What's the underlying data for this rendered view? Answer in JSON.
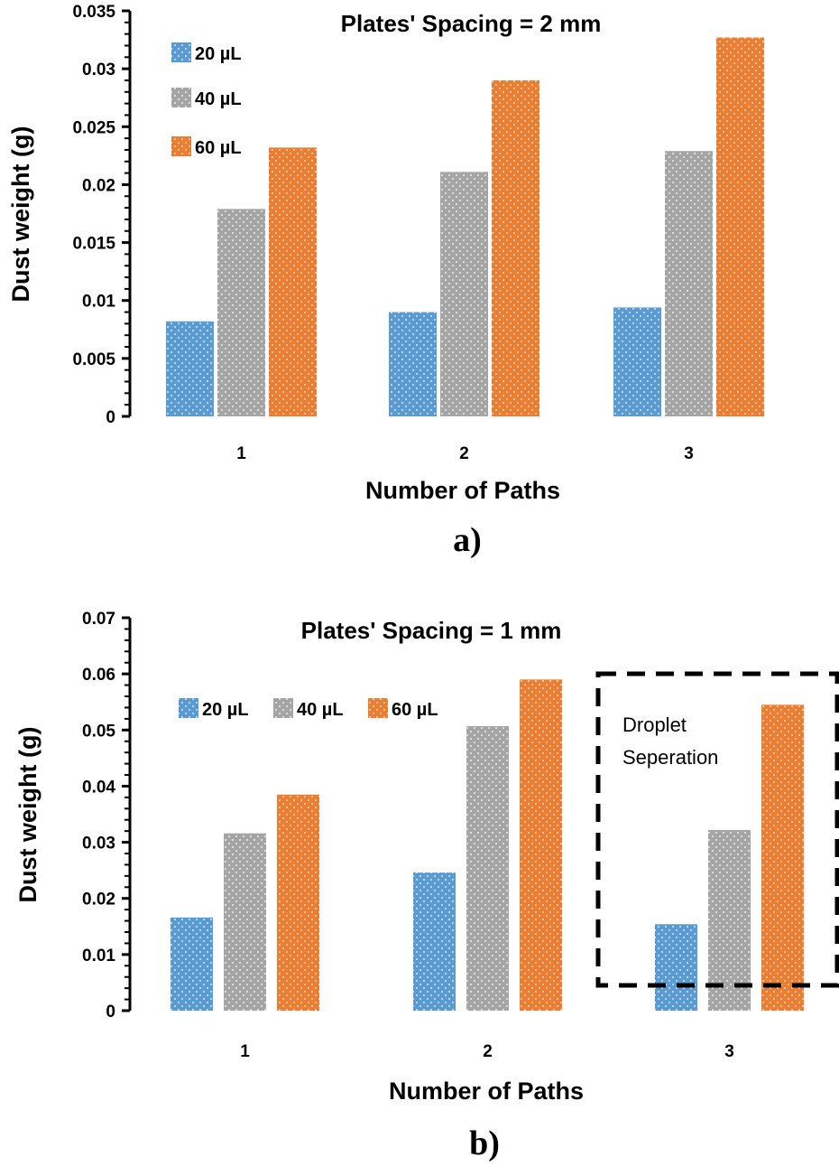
{
  "colors": {
    "s20": "#5b9bd5",
    "s40": "#a5a5a5",
    "s60": "#ed7d31",
    "axis": "#000000"
  },
  "chart_data": [
    {
      "type": "bar",
      "title": "Plates' Spacing = 2 mm",
      "xlabel": "Number of Paths",
      "ylabel": "Dust weight (g)",
      "panel_label": "a)",
      "categories": [
        "1",
        "2",
        "3"
      ],
      "ylim": [
        0,
        0.035
      ],
      "yticks": [
        "0",
        "0.005",
        "0.01",
        "0.015",
        "0.02",
        "0.025",
        "0.03",
        "0.035"
      ],
      "legend_position": "top-left",
      "series": [
        {
          "name": "20 µL",
          "values": [
            0.0082,
            0.009,
            0.0094
          ]
        },
        {
          "name": "40 µL",
          "values": [
            0.0179,
            0.0211,
            0.0229
          ]
        },
        {
          "name": "60 µL",
          "values": [
            0.0232,
            0.029,
            0.0327
          ]
        }
      ]
    },
    {
      "type": "bar",
      "title": "Plates' Spacing = 1 mm",
      "xlabel": "Number of Paths",
      "ylabel": "Dust weight (g)",
      "panel_label": "b)",
      "categories": [
        "1",
        "2",
        "3"
      ],
      "ylim": [
        0,
        0.07
      ],
      "yticks": [
        "0",
        "0.01",
        "0.02",
        "0.03",
        "0.04",
        "0.05",
        "0.06",
        "0.07"
      ],
      "legend_position": "top-left",
      "annotation": "Droplet Seperation",
      "series": [
        {
          "name": "20 µL",
          "values": [
            0.0166,
            0.0246,
            0.0154
          ]
        },
        {
          "name": "40 µL",
          "values": [
            0.0316,
            0.0507,
            0.0322
          ]
        },
        {
          "name": "60 µL",
          "values": [
            0.0385,
            0.059,
            0.0545
          ]
        }
      ]
    }
  ]
}
